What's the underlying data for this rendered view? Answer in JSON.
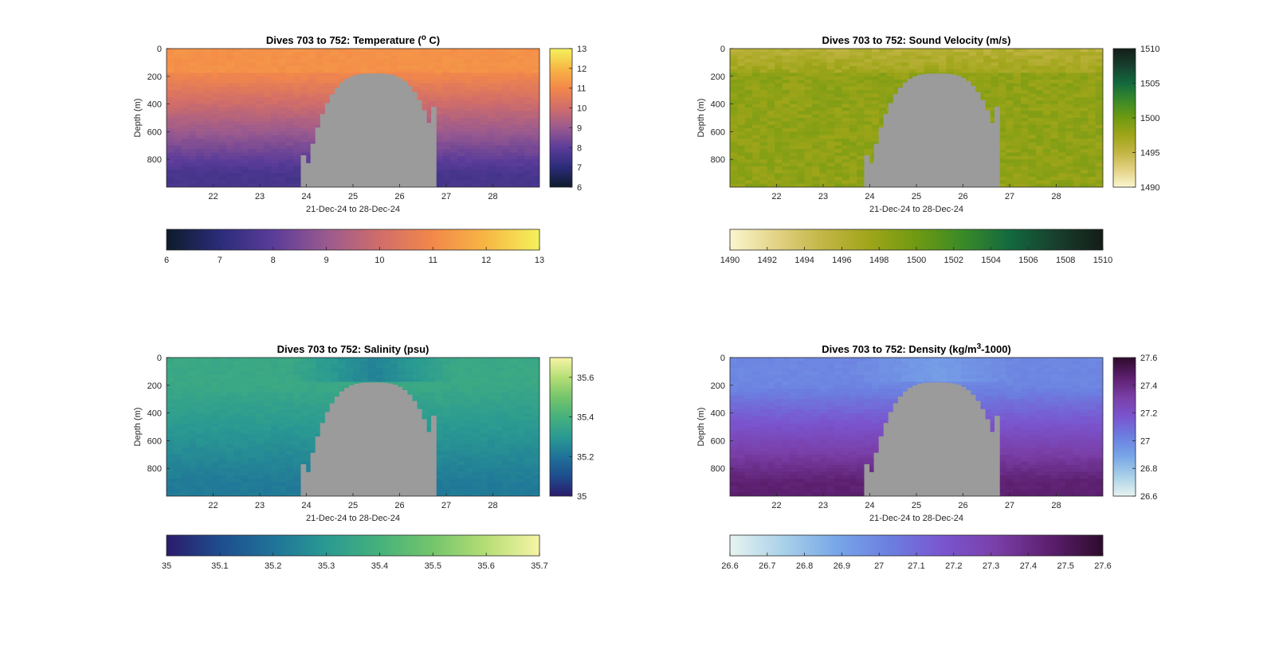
{
  "panels": [
    {
      "key": "temperature",
      "title_prefix": "Dives 703 to 752: Temperature (",
      "title_super": "o",
      "title_suffix": " C)",
      "ylabel": "Depth (m)",
      "xlabel": "21-Dec-24 to 28-Dec-24",
      "x_ticks": [
        "22",
        "23",
        "24",
        "25",
        "26",
        "27",
        "28"
      ],
      "y_ticks": [
        "0",
        "200",
        "400",
        "600",
        "800"
      ],
      "vcbar_ticks": [
        "13",
        "12",
        "11",
        "10",
        "9",
        "8",
        "7",
        "6"
      ],
      "hcbar_ticks": [
        "6",
        "7",
        "8",
        "9",
        "10",
        "11",
        "12",
        "13"
      ],
      "colors": [
        "#0d1b2a",
        "#2b2c7a",
        "#5b3c99",
        "#9a5a8f",
        "#d06d6a",
        "#f3884a",
        "#f7b744",
        "#f4f25c"
      ],
      "vmin": 6,
      "vmax": 13,
      "surface": 10.9,
      "deep": 7.6
    },
    {
      "key": "sound_velocity",
      "title_prefix": "Dives 703 to 752: Sound Velocity (m/s)",
      "title_super": "",
      "title_suffix": "",
      "ylabel": "Depth (m)",
      "xlabel": "21-Dec-24 to 28-Dec-24",
      "x_ticks": [
        "22",
        "23",
        "24",
        "25",
        "26",
        "27",
        "28"
      ],
      "y_ticks": [
        "0",
        "200",
        "400",
        "600",
        "800"
      ],
      "vcbar_ticks": [
        "1510",
        "1505",
        "1500",
        "1495",
        "1490"
      ],
      "hcbar_ticks": [
        "1490",
        "1492",
        "1494",
        "1496",
        "1498",
        "1500",
        "1502",
        "1504",
        "1506",
        "1508",
        "1510"
      ],
      "colors": [
        "#fbf6cf",
        "#e3d285",
        "#c2b544",
        "#9fa519",
        "#6f9a12",
        "#3a8a28",
        "#13693e",
        "#173f2e",
        "#141d17"
      ],
      "vmin": 1490,
      "vmax": 1510,
      "surface": 1497.5,
      "deep": 1498.5
    },
    {
      "key": "salinity",
      "title_prefix": "Dives 703 to 752: Salinity (psu)",
      "title_super": "",
      "title_suffix": "",
      "ylabel": "Depth (m)",
      "xlabel": "21-Dec-24 to 28-Dec-24",
      "x_ticks": [
        "22",
        "23",
        "24",
        "25",
        "26",
        "27",
        "28"
      ],
      "y_ticks": [
        "0",
        "200",
        "400",
        "600",
        "800"
      ],
      "vcbar_ticks": [
        "35.6",
        "35.4",
        "35.2",
        "35"
      ],
      "hcbar_ticks": [
        "35",
        "35.1",
        "35.2",
        "35.3",
        "35.4",
        "35.5",
        "35.6",
        "35.7"
      ],
      "colors": [
        "#2b1b6b",
        "#1e4d8e",
        "#1f7399",
        "#2a9a92",
        "#46b17c",
        "#74c56b",
        "#b6de75",
        "#f6f4a6"
      ],
      "vmin": 35,
      "vmax": 35.7,
      "surface": 35.36,
      "deep": 35.22
    },
    {
      "key": "density",
      "title_prefix": "Dives 703 to 752: Density (kg/m",
      "title_super": "3",
      "title_suffix": "-1000)",
      "ylabel": "Depth (m)",
      "xlabel": "21-Dec-24 to 28-Dec-24",
      "x_ticks": [
        "22",
        "23",
        "24",
        "25",
        "26",
        "27",
        "28"
      ],
      "y_ticks": [
        "0",
        "200",
        "400",
        "600",
        "800"
      ],
      "vcbar_ticks": [
        "27.6",
        "27.4",
        "27.2",
        "27",
        "26.8",
        "26.6"
      ],
      "hcbar_ticks": [
        "26.6",
        "26.7",
        "26.8",
        "26.9",
        "27",
        "27.1",
        "27.2",
        "27.3",
        "27.4",
        "27.5",
        "27.6"
      ],
      "colors": [
        "#e8f3f1",
        "#a9d1e8",
        "#78a6e8",
        "#6b7fe0",
        "#7a55cf",
        "#7a3fa8",
        "#5c1f6e",
        "#2e0b2c"
      ],
      "vmin": 26.6,
      "vmax": 27.6,
      "surface": 27.0,
      "deep": 27.45
    }
  ],
  "chart_data": [
    {
      "type": "heatmap",
      "title": "Dives 703 to 752: Temperature (o C)",
      "xlabel": "21-Dec-24 to 28-Dec-24",
      "ylabel": "Depth (m)",
      "xlim": [
        21,
        29
      ],
      "ylim": [
        0,
        1000
      ],
      "y_reversed": true,
      "colorbar_range": [
        6,
        13
      ],
      "approx_profile": [
        {
          "depth": 0,
          "value": 10.9
        },
        {
          "depth": 200,
          "value": 10.8
        },
        {
          "depth": 400,
          "value": 9.8
        },
        {
          "depth": 600,
          "value": 8.8
        },
        {
          "depth": 800,
          "value": 8.2
        }
      ],
      "missing_region": {
        "x": [
          23.9,
          26.8
        ],
        "depth_top_min": 180
      }
    },
    {
      "type": "heatmap",
      "title": "Dives 703 to 752: Sound Velocity (m/s)",
      "xlabel": "21-Dec-24 to 28-Dec-24",
      "ylabel": "Depth (m)",
      "xlim": [
        21,
        29
      ],
      "ylim": [
        0,
        1000
      ],
      "y_reversed": true,
      "colorbar_range": [
        1490,
        1510
      ],
      "approx_profile": [
        {
          "depth": 0,
          "value": 1496
        },
        {
          "depth": 200,
          "value": 1498
        },
        {
          "depth": 400,
          "value": 1498
        },
        {
          "depth": 800,
          "value": 1497.5
        }
      ],
      "missing_region": {
        "x": [
          23.9,
          26.8
        ],
        "depth_top_min": 180
      }
    },
    {
      "type": "heatmap",
      "title": "Dives 703 to 752: Salinity (psu)",
      "xlabel": "21-Dec-24 to 28-Dec-24",
      "ylabel": "Depth (m)",
      "xlim": [
        21,
        29
      ],
      "ylim": [
        0,
        1000
      ],
      "y_reversed": true,
      "colorbar_range": [
        35,
        35.7
      ],
      "approx_profile": [
        {
          "depth": 0,
          "value": 35.38
        },
        {
          "depth": 200,
          "value": 35.38
        },
        {
          "depth": 400,
          "value": 35.3
        },
        {
          "depth": 600,
          "value": 35.25
        },
        {
          "depth": 800,
          "value": 35.22
        }
      ],
      "missing_region": {
        "x": [
          23.9,
          26.8
        ],
        "depth_top_min": 180
      }
    },
    {
      "type": "heatmap",
      "title": "Dives 703 to 752: Density (kg/m3-1000)",
      "xlabel": "21-Dec-24 to 28-Dec-24",
      "ylabel": "Depth (m)",
      "xlim": [
        21,
        29
      ],
      "ylim": [
        0,
        1000
      ],
      "y_reversed": true,
      "colorbar_range": [
        26.6,
        27.6
      ],
      "approx_profile": [
        {
          "depth": 0,
          "value": 26.95
        },
        {
          "depth": 200,
          "value": 27.0
        },
        {
          "depth": 400,
          "value": 27.2
        },
        {
          "depth": 600,
          "value": 27.3
        },
        {
          "depth": 800,
          "value": 27.4
        }
      ],
      "missing_region": {
        "x": [
          23.9,
          26.8
        ],
        "depth_top_min": 180
      }
    }
  ]
}
